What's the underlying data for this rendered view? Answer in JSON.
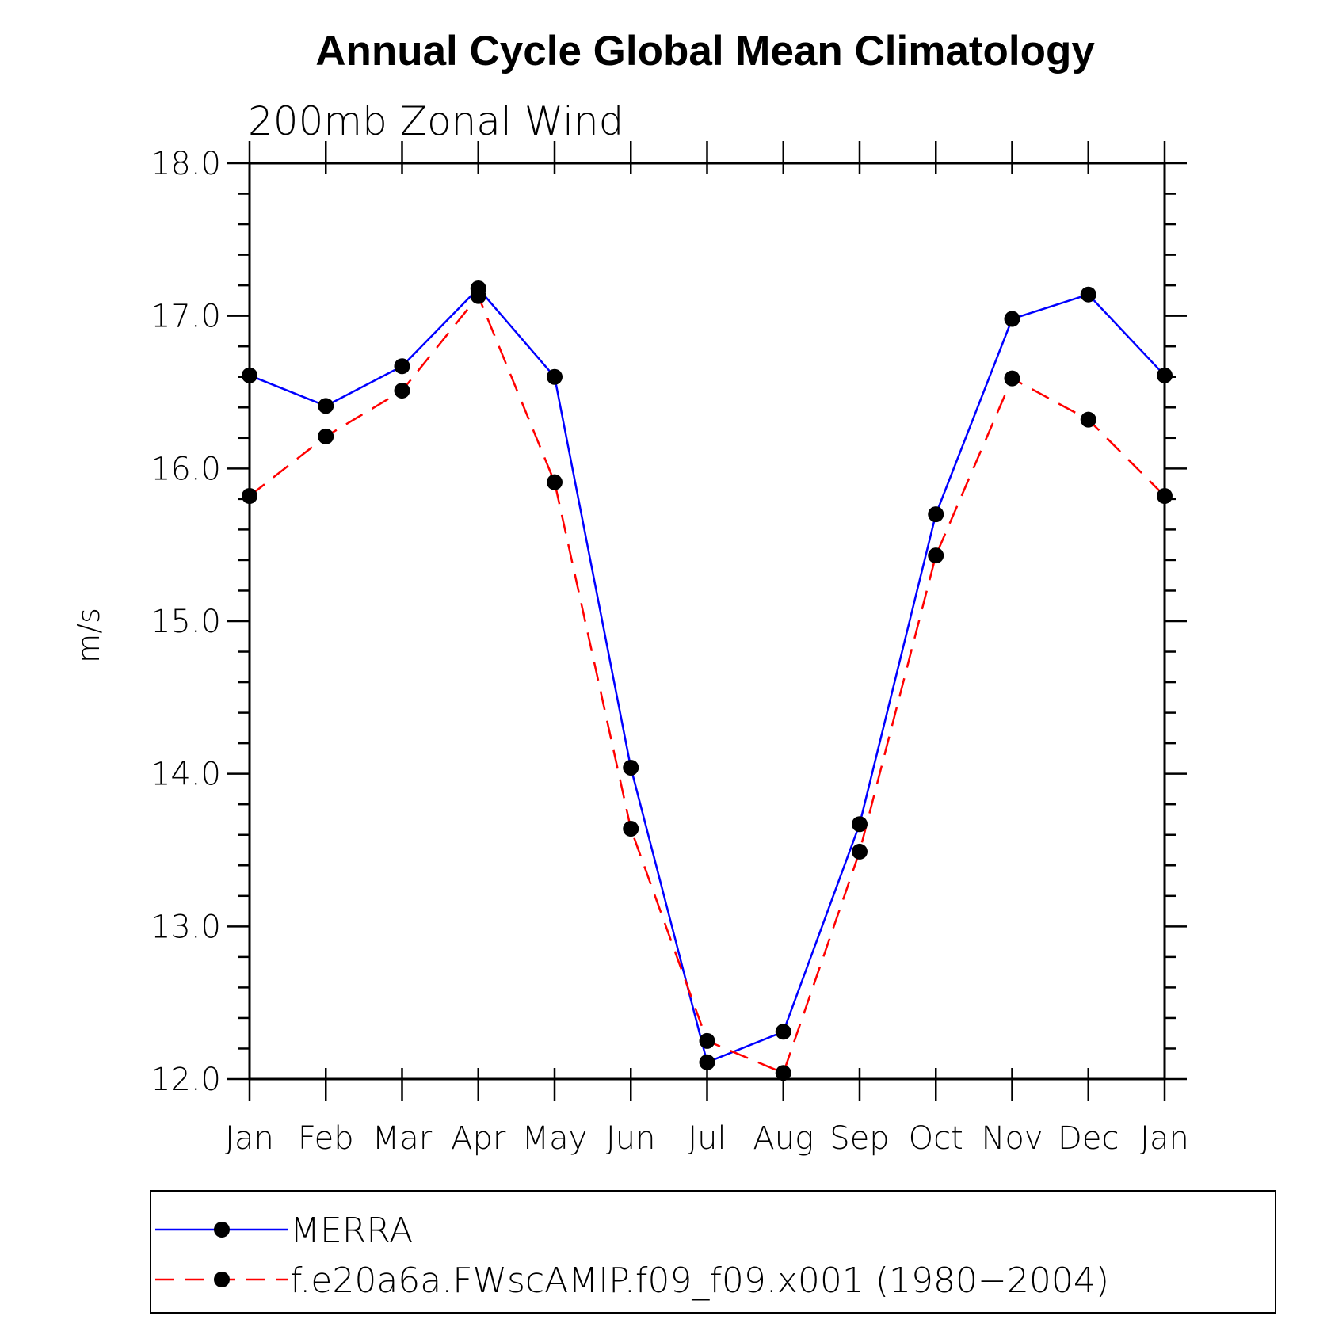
{
  "chart_data": {
    "type": "line",
    "title": "Annual Cycle Global Mean Climatology",
    "subtitle": "200mb Zonal Wind",
    "ylabel": "m/s",
    "xlabel": "",
    "categories": [
      "Jan",
      "Feb",
      "Mar",
      "Apr",
      "May",
      "Jun",
      "Jul",
      "Aug",
      "Sep",
      "Oct",
      "Nov",
      "Dec",
      "Jan"
    ],
    "ylim": [
      12.0,
      18.0
    ],
    "yticks": [
      "12.0",
      "13.0",
      "14.0",
      "15.0",
      "16.0",
      "17.0",
      "18.0"
    ],
    "series": [
      {
        "name": "MERRA",
        "color": "#0000ff",
        "dash": "solid",
        "values": [
          16.61,
          16.41,
          16.67,
          17.18,
          16.6,
          14.04,
          12.11,
          12.31,
          13.67,
          15.7,
          16.98,
          17.14,
          16.61
        ]
      },
      {
        "name": "f.e20a6a.FWscAMIP.f09_f09.x001 (1980−2004)",
        "color": "#ff0000",
        "dash": "dashed",
        "values": [
          15.82,
          16.21,
          16.51,
          17.13,
          15.91,
          13.64,
          12.25,
          12.04,
          13.49,
          15.43,
          16.59,
          16.32,
          15.82
        ]
      }
    ],
    "grid": false,
    "legend_position": "bottom"
  }
}
